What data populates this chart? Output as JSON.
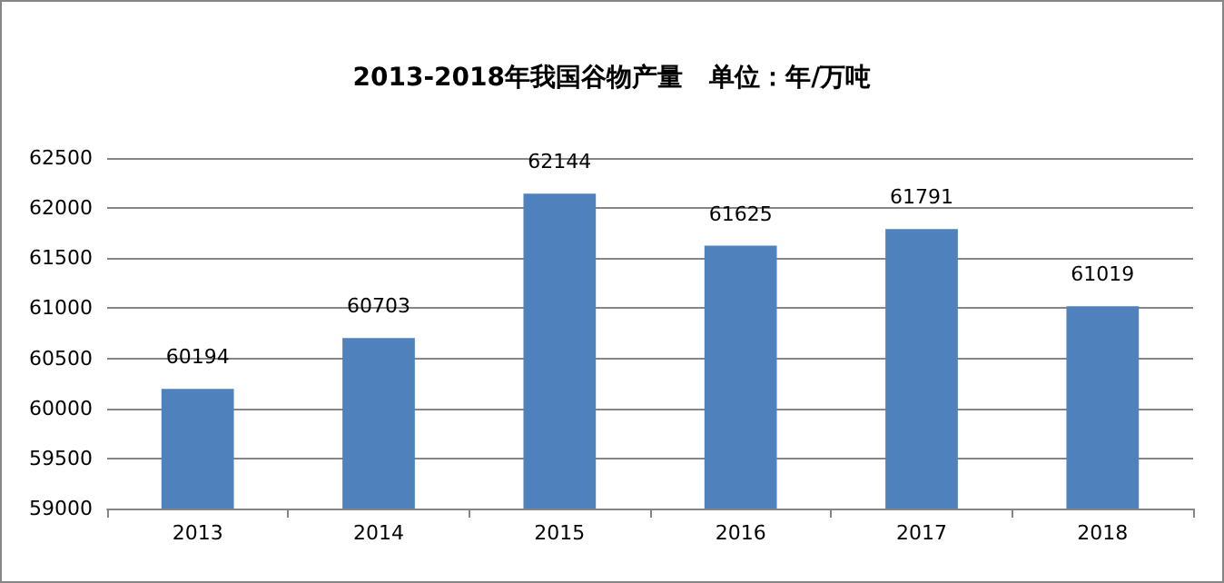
{
  "chart_data": {
    "type": "bar",
    "title": "2013-2018年我国谷物产量   单位：年/万吨",
    "categories": [
      "2013",
      "2014",
      "2015",
      "2016",
      "2017",
      "2018"
    ],
    "values": [
      60194,
      60703,
      62144,
      61625,
      61791,
      61019
    ],
    "color": "#4f81bd",
    "ylim": [
      59000,
      62500
    ],
    "yticks": [
      59000,
      59500,
      60000,
      60500,
      61000,
      61500,
      62000,
      62500
    ],
    "grid": "y",
    "data_labels": true
  }
}
